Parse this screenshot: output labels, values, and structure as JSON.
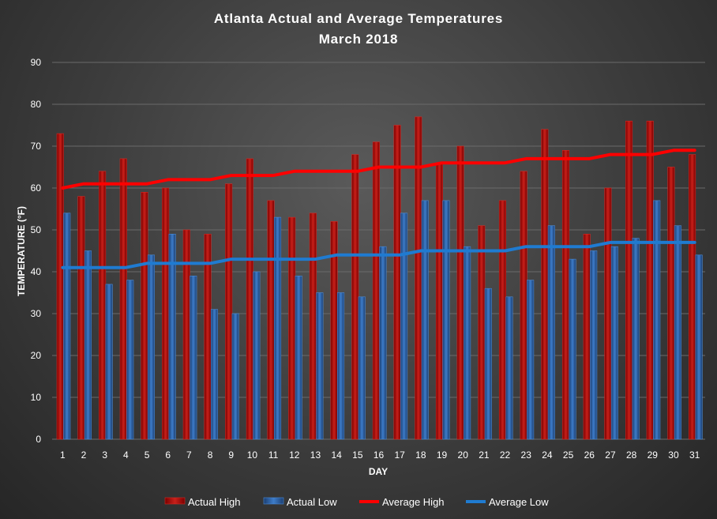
{
  "chart_data": {
    "type": "bar",
    "title": "Atlanta Actual and Average Temperatures",
    "subtitle": "March 2018",
    "xlabel": "DAY",
    "ylabel": "TEMPERATURE (°F)",
    "ylim": [
      0,
      90
    ],
    "yticks": [
      0,
      10,
      20,
      30,
      40,
      50,
      60,
      70,
      80,
      90
    ],
    "grid": true,
    "legend_position": "bottom",
    "categories": [
      "1",
      "2",
      "3",
      "4",
      "5",
      "6",
      "7",
      "8",
      "9",
      "10",
      "11",
      "12",
      "13",
      "14",
      "15",
      "16",
      "17",
      "18",
      "19",
      "20",
      "21",
      "22",
      "23",
      "24",
      "25",
      "26",
      "27",
      "28",
      "29",
      "30",
      "31"
    ],
    "series": [
      {
        "name": "Actual High",
        "kind": "bar",
        "color": "#c00000",
        "values": [
          73,
          58,
          64,
          67,
          59,
          60,
          50,
          49,
          61,
          67,
          57,
          53,
          54,
          52,
          68,
          71,
          75,
          77,
          66,
          70,
          51,
          57,
          64,
          74,
          69,
          49,
          60,
          76,
          76,
          65,
          68
        ]
      },
      {
        "name": "Actual Low",
        "kind": "bar",
        "color": "#2e6db4",
        "values": [
          54,
          45,
          37,
          38,
          44,
          49,
          39,
          31,
          30,
          40,
          53,
          39,
          35,
          35,
          34,
          46,
          54,
          57,
          57,
          46,
          36,
          34,
          38,
          51,
          43,
          45,
          46,
          48,
          57,
          51,
          44
        ]
      },
      {
        "name": "Average High",
        "kind": "line",
        "color": "#ff0000",
        "values": [
          60,
          61,
          61,
          61,
          61,
          62,
          62,
          62,
          63,
          63,
          63,
          64,
          64,
          64,
          64,
          65,
          65,
          65,
          66,
          66,
          66,
          66,
          67,
          67,
          67,
          67,
          68,
          68,
          68,
          69,
          69
        ]
      },
      {
        "name": "Average Low",
        "kind": "line",
        "color": "#1f7bd1",
        "values": [
          41,
          41,
          41,
          41,
          42,
          42,
          42,
          42,
          43,
          43,
          43,
          43,
          43,
          44,
          44,
          44,
          44,
          45,
          45,
          45,
          45,
          45,
          46,
          46,
          46,
          46,
          47,
          47,
          47,
          47,
          47
        ]
      }
    ]
  }
}
